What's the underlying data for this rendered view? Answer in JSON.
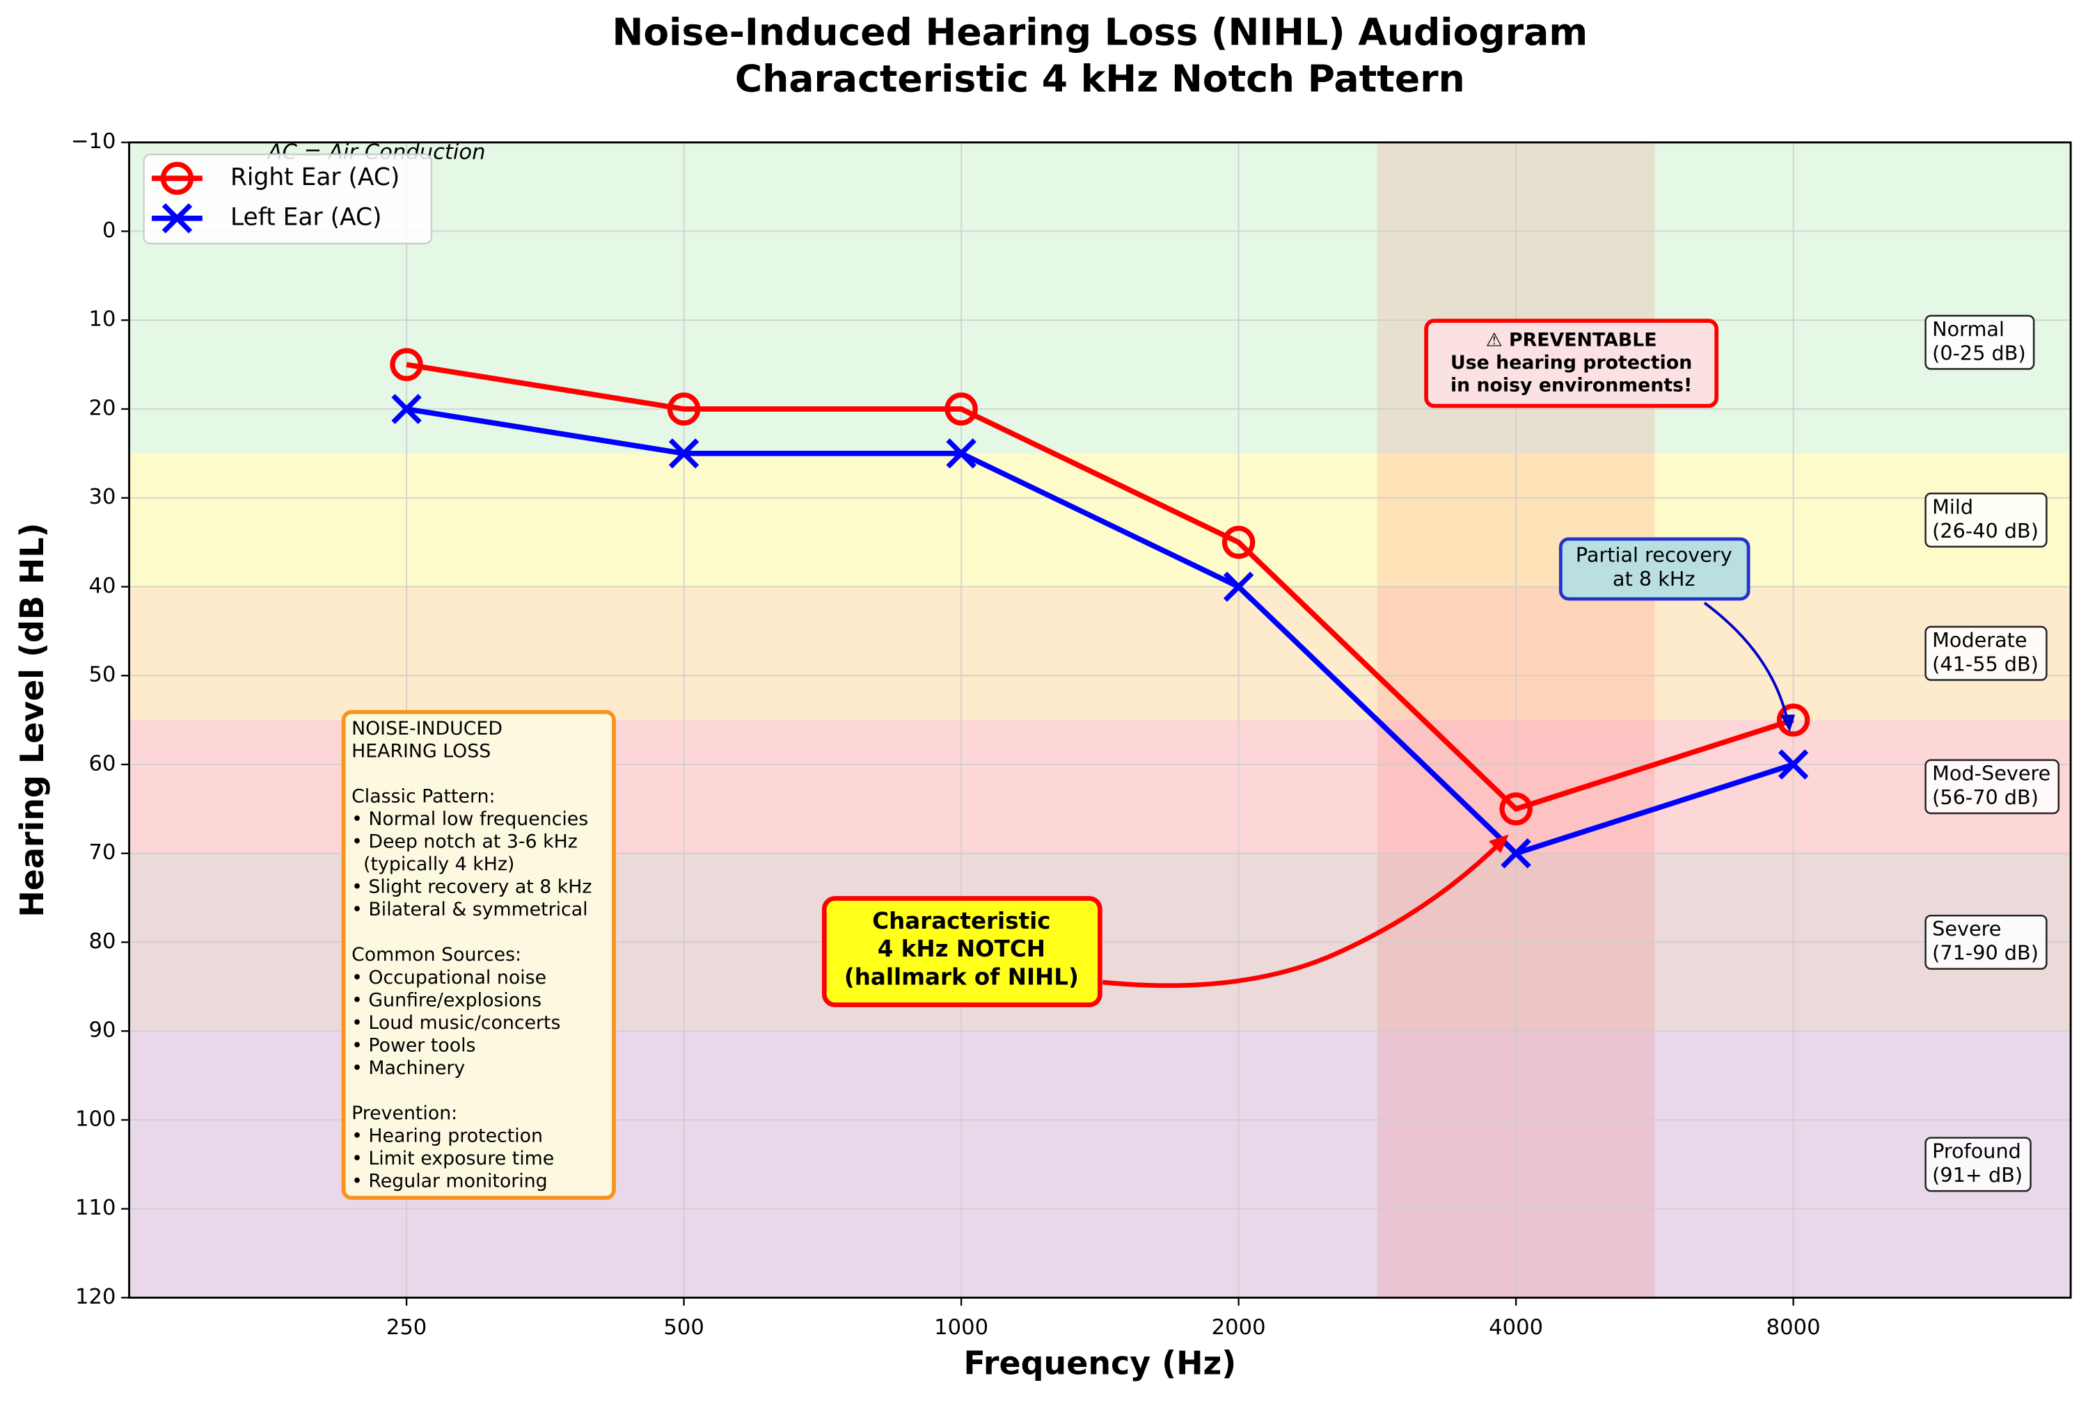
{
  "chart_data": {
    "type": "line",
    "title": "Noise-Induced Hearing Loss (NIHL) Audiogram",
    "subtitle": "Characteristic 4 kHz Notch Pattern",
    "x_label": "Frequency (Hz)",
    "y_label": "Hearing Level (dB HL)",
    "x": [
      250,
      500,
      1000,
      2000,
      4000,
      8000
    ],
    "xlim": [
      125,
      16000
    ],
    "xticks": [
      250,
      500,
      1000,
      2000,
      4000,
      8000
    ],
    "x_log_scale": true,
    "ylim": [
      120,
      -10
    ],
    "yticks": [
      {
        "value": -10,
        "label": "−10"
      },
      0,
      10,
      20,
      30,
      40,
      50,
      60,
      70,
      80,
      90,
      100,
      110,
      120
    ],
    "grid": true,
    "legend_position": "upper-left",
    "series": [
      {
        "name": "Right Ear (AC)",
        "color": "#ff0000",
        "marker": "circle",
        "values": [
          15,
          20,
          20,
          35,
          65,
          55
        ]
      },
      {
        "name": "Left Ear (AC)",
        "color": "#0000ff",
        "marker": "x",
        "values": [
          20,
          25,
          25,
          40,
          70,
          60
        ]
      }
    ],
    "bands": [
      {
        "name": "Normal",
        "range": "(0-25 dB)",
        "from": -10,
        "to": 25,
        "color": "#e5f8e5"
      },
      {
        "name": "Mild",
        "range": "(26-40 dB)",
        "from": 25,
        "to": 40,
        "color": "#fefbcb"
      },
      {
        "name": "Moderate",
        "range": "(41-55 dB)",
        "from": 40,
        "to": 55,
        "color": "#fdebcc"
      },
      {
        "name": "Mod-Severe",
        "range": "(56-70 dB)",
        "from": 55,
        "to": 70,
        "color": "#fdd7d7"
      },
      {
        "name": "Severe",
        "range": "(71-90 dB)",
        "from": 70,
        "to": 90,
        "color": "#ebdad9"
      },
      {
        "name": "Profound",
        "range": "(91+ dB)",
        "from": 90,
        "to": 120,
        "color": "#e9d8ea"
      }
    ],
    "notch_band": [
      2828,
      5657
    ],
    "notch_band_color": "rgba(255,60,60,0.13)",
    "note": "AC = Air Conduction",
    "notch_annotation": [
      "Characteristic",
      "4 kHz NOTCH",
      "(hallmark of NIHL)"
    ],
    "prevention_annotation": [
      "⚠ PREVENTABLE",
      "Use hearing protection",
      "in noisy environments!"
    ],
    "recovery_annotation": [
      "Partial recovery",
      "at 8 kHz"
    ],
    "info_box": {
      "title": [
        "NOISE-INDUCED",
        "HEARING LOSS"
      ],
      "sections": [
        {
          "heading": "Classic Pattern:",
          "items": [
            "• Normal low frequencies",
            "• Deep notch at 3-6 kHz",
            "  (typically 4 kHz)",
            "• Slight recovery at 8 kHz",
            "• Bilateral & symmetrical"
          ]
        },
        {
          "heading": "Common Sources:",
          "items": [
            "• Occupational noise",
            "• Gunfire/explosions",
            "• Loud music/concerts",
            "• Power tools",
            "• Machinery"
          ]
        },
        {
          "heading": "Prevention:",
          "items": [
            "• Hearing protection",
            "• Limit exposure time",
            "• Regular monitoring"
          ]
        }
      ]
    }
  }
}
